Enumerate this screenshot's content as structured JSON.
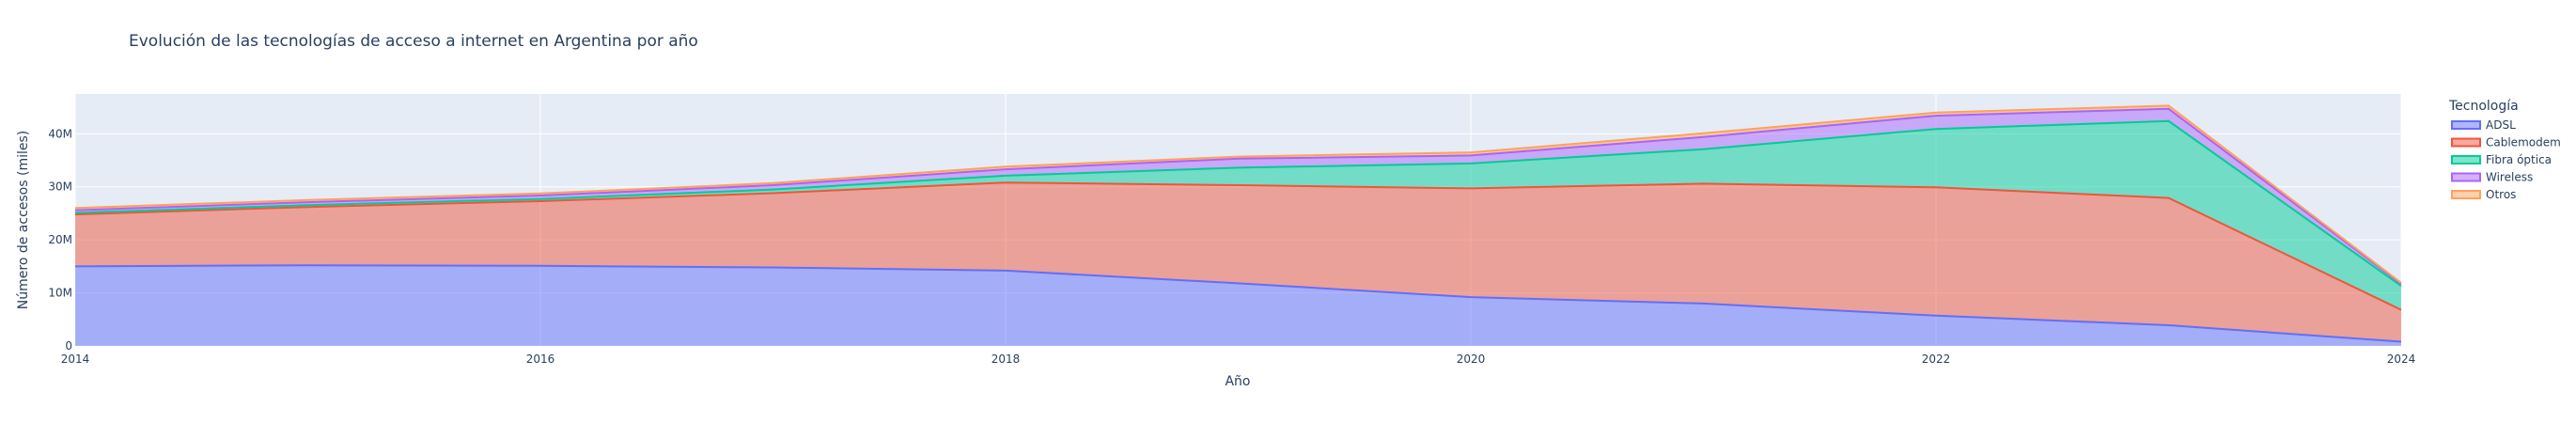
{
  "chart_data": {
    "type": "area",
    "stacked": true,
    "title": "Evolución de las tecnologías de acceso a internet en Argentina por año",
    "xlabel": "Año",
    "ylabel": "Número de accesos (miles)",
    "x": [
      2014,
      2015,
      2016,
      2017,
      2018,
      2019,
      2020,
      2021,
      2022,
      2023,
      2024
    ],
    "x_ticks": [
      "2014",
      "2016",
      "2018",
      "2020",
      "2022",
      "2024"
    ],
    "y_ticks": [
      "0",
      "10M",
      "20M",
      "30M",
      "40M"
    ],
    "y_tick_values": [
      0,
      10000000,
      20000000,
      30000000,
      40000000
    ],
    "xlim": [
      2014,
      2024
    ],
    "ylim": [
      0,
      47500000
    ],
    "grid": true,
    "legend_title": "Tecnología",
    "legend_position": "top-right",
    "series": [
      {
        "name": "ADSL",
        "color": "#636efa",
        "values": [
          15000000,
          15200000,
          15100000,
          14800000,
          14200000,
          11800000,
          9200000,
          8000000,
          5700000,
          3900000,
          800000
        ]
      },
      {
        "name": "Cablemodem",
        "color": "#EF553B",
        "values": [
          9800000,
          11000000,
          12200000,
          14000000,
          16600000,
          18500000,
          20500000,
          22600000,
          24200000,
          24000000,
          6000000
        ]
      },
      {
        "name": "Fibra óptica",
        "color": "#00cc96",
        "values": [
          300000,
          350000,
          400000,
          700000,
          1300000,
          3300000,
          4700000,
          6500000,
          11000000,
          14500000,
          4500000
        ]
      },
      {
        "name": "Wireless",
        "color": "#ab63fa",
        "values": [
          500000,
          550000,
          650000,
          800000,
          1200000,
          1700000,
          1500000,
          2300000,
          2500000,
          2300000,
          400000
        ]
      },
      {
        "name": "Otros",
        "color": "#FFA15A",
        "values": [
          400000,
          400000,
          400000,
          400000,
          500000,
          400000,
          600000,
          700000,
          600000,
          600000,
          200000
        ]
      }
    ]
  }
}
